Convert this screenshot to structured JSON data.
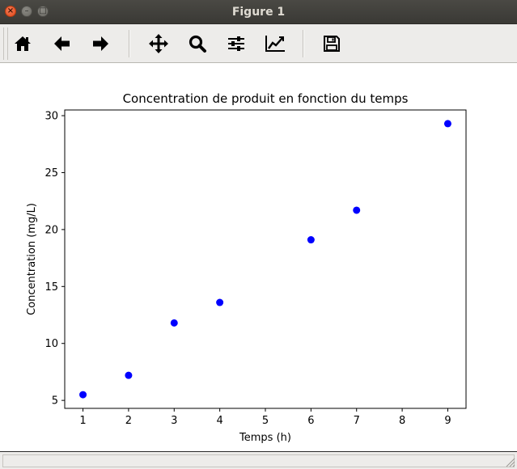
{
  "window": {
    "title": "Figure 1",
    "close_glyph": "×",
    "minimize_glyph": "–",
    "maximize_glyph": "□"
  },
  "toolbar": {
    "buttons": [
      {
        "name": "home",
        "icon": "home-icon"
      },
      {
        "name": "back",
        "icon": "arrow-left-icon"
      },
      {
        "name": "forward",
        "icon": "arrow-right-icon"
      },
      {
        "name": "pan",
        "icon": "move-icon"
      },
      {
        "name": "zoom",
        "icon": "magnifier-icon"
      },
      {
        "name": "subplots",
        "icon": "sliders-icon"
      },
      {
        "name": "edit-axes",
        "icon": "chart-line-icon"
      },
      {
        "name": "save",
        "icon": "floppy-disk-icon"
      }
    ]
  },
  "colors": {
    "marker": "#0000ff",
    "axes": "#000000",
    "text": "#000000"
  },
  "chart_data": {
    "type": "scatter",
    "title": "Concentration de produit en fonction du temps",
    "xlabel": "Temps (h)",
    "ylabel": "Concentration (mg/L)",
    "x": [
      1,
      2,
      3,
      4,
      6,
      7,
      9
    ],
    "y": [
      5.5,
      7.2,
      11.8,
      13.6,
      19.1,
      21.7,
      29.3
    ],
    "xlim": [
      0.6,
      9.4
    ],
    "ylim": [
      4.3,
      30.5
    ],
    "xticks": [
      1,
      2,
      3,
      4,
      5,
      6,
      7,
      8,
      9
    ],
    "yticks": [
      5,
      10,
      15,
      20,
      25,
      30
    ],
    "grid": false,
    "legend": false
  }
}
